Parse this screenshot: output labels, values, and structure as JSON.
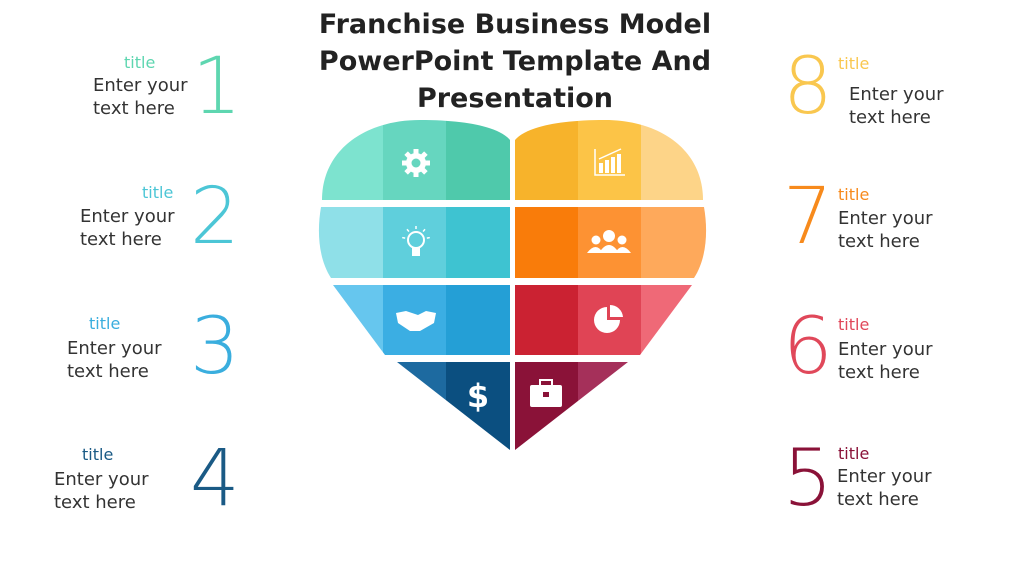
{
  "title": "Franchise Business Model PowerPoint Template And Presentation",
  "items": [
    {
      "num": "1",
      "title": "title",
      "text1": "Enter your",
      "text2": "text here",
      "color": "#5ed6b0"
    },
    {
      "num": "2",
      "title": "title",
      "text1": "Enter your",
      "text2": "text here",
      "color": "#4cc6d6"
    },
    {
      "num": "3",
      "title": "title",
      "text1": "Enter your",
      "text2": "text here",
      "color": "#3aaede"
    },
    {
      "num": "4",
      "title": "title",
      "text1": "Enter your",
      "text2": "text here",
      "color": "#1a5a85"
    },
    {
      "num": "5",
      "title": "title",
      "text1": "Enter your",
      "text2": "text here",
      "color": "#8a1238"
    },
    {
      "num": "6",
      "title": "title",
      "text1": "Enter your",
      "text2": "text here",
      "color": "#e0485a"
    },
    {
      "num": "7",
      "title": "title",
      "text1": "Enter your",
      "text2": "text here",
      "color": "#f78a1c"
    },
    {
      "num": "8",
      "title": "title",
      "text1": "Enter your",
      "text2": "text here",
      "color": "#f9c74f"
    }
  ],
  "heart": {
    "segments": [
      {
        "icon": "gear-icon",
        "colors": [
          "#7de3cf",
          "#66d6bf",
          "#4fc9ab"
        ]
      },
      {
        "icon": "lightbulb-icon",
        "colors": [
          "#8fe0e8",
          "#5fcfdc",
          "#3ec3d1"
        ]
      },
      {
        "icon": "handshake-icon",
        "colors": [
          "#66c6ee",
          "#3baee3",
          "#249fd6"
        ]
      },
      {
        "icon": "dollar-icon",
        "colors": [
          "#1d6aa0",
          "#1d6aa0",
          "#0b4f80"
        ]
      },
      {
        "icon": "briefcase-icon",
        "colors": [
          "#8a1238",
          "#a5305a",
          "#a5305a"
        ]
      },
      {
        "icon": "pie-chart-icon",
        "colors": [
          "#cb2232",
          "#e04455",
          "#ef6977"
        ]
      },
      {
        "icon": "team-icon",
        "colors": [
          "#f97c0a",
          "#fd9233",
          "#fea95b"
        ]
      },
      {
        "icon": "bar-chart-icon",
        "colors": [
          "#f7b32b",
          "#fcc447",
          "#fdd488"
        ]
      }
    ]
  }
}
